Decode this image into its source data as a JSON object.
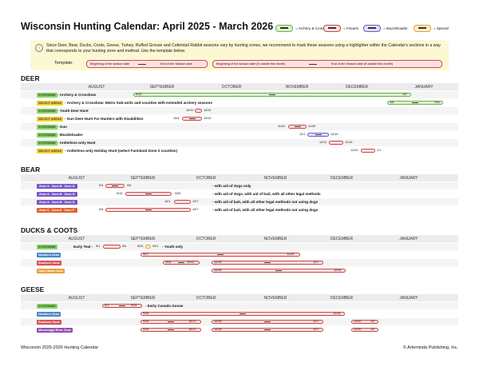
{
  "title": "Wisconsin Hunting Calendar: April 2025 - March 2026",
  "legend": {
    "archery": "= Archery & Crossbow",
    "firearm": "= Firearm",
    "muzzle": "= Muzzleloader",
    "special": "= Special"
  },
  "note": "Since Deer, Bear, Ducks, Coots, Geese, Turkey, Ruffed Grouse and Cottontail Rabbit seasons vary by hunting zones, we recommend to mark these seasons using a highlighter within the Calendar's sections in a way that corresponds to your hunting zone and method. Use the template below.",
  "template": {
    "label": "Template:",
    "begin": "Beginning of the season date",
    "end": "End of the Season  date",
    "begin_outside": "Beginning of the season date (if outside this month)",
    "end_outside": "End of the Season date (if outside this month)"
  },
  "months": {
    "deer": [
      "AUGUST",
      "SEPTEMBER",
      "OCTOBER",
      "NOVEMBER",
      "DECEMBER",
      "JANUARY"
    ],
    "bear": [
      "AUGUST",
      "SEPTEMBER",
      "OCTOBER",
      "NOVEMBER",
      "DECEMBER",
      "JANUARY"
    ],
    "ducks": [
      "AUGUST",
      "SEPTEMBER",
      "OCTOBER",
      "NOVEMBER",
      "DECEMBER",
      "JANUARY"
    ],
    "geese": [
      "AUGUST",
      "SEPTEMBER",
      "OCTOBER",
      "NOVEMBER",
      "DECEMBER",
      "JANUARY"
    ]
  },
  "deer": {
    "heading": "DEER",
    "rows": [
      {
        "tag": "STATEWIDE",
        "label": "- Archery & Crossbow",
        "d1": "9/13",
        "d2": "1/4"
      },
      {
        "tag": "SELECT AREAS",
        "label": "- Archery & Crossbow: Metro Sub-units and counties with extended archery seasons",
        "d1": "1/5",
        "d2": "1/31"
      },
      {
        "tag": "STATEWIDE",
        "label": "- Youth Deer Hunt",
        "d1": "10/11",
        "d2": "10/12"
      },
      {
        "tag": "SELECT AREAS",
        "label": "- Gun Deer Hunt For Hunters with Disabilities",
        "d1": "10/4",
        "d2": "10/12"
      },
      {
        "tag": "STATEWIDE",
        "label": "- Gun",
        "d1": "11/22",
        "d2": "11/30"
      },
      {
        "tag": "STATEWIDE",
        "label": "- Muzzleloader",
        "d1": "12/1",
        "d2": "12/10"
      },
      {
        "tag": "STATEWIDE",
        "label": "- Antlerless-only Hunt",
        "d1": "12/11",
        "d2": "12/14"
      },
      {
        "tag": "SELECT AREAS",
        "label": "- Antlerless-only Holiday Hunt (select Farmland Zone 2 counties)",
        "d1": "12/24",
        "d2": "1/1"
      }
    ]
  },
  "bear": {
    "heading": "BEAR",
    "rows": [
      {
        "zones": [
          "Zone A",
          "Zone B",
          "Zone D"
        ],
        "label": "- with aid of dogs only",
        "d1": "9/3",
        "d2": "9/9"
      },
      {
        "zones": [
          "Zone A",
          "Zone B",
          "Zone D"
        ],
        "label": "- with aid of dogs, with aid of bait, with all other legal methods",
        "d1": "9/10",
        "d2": "9/30"
      },
      {
        "zones": [
          "Zone A",
          "Zone B",
          "Zone D"
        ],
        "label": "- with aid of bait, with all other legal methods not using dogs",
        "d1": "10/1",
        "d2": "10/7"
      },
      {
        "zones": [
          "Zone C",
          "Zone E",
          "Zone F"
        ],
        "label": "- with aid of bait, with all other legal methods not using dogs",
        "d1": "9/3",
        "d2": "10/7"
      }
    ]
  },
  "ducks": {
    "heading": "DUCKS & COOTS",
    "rows": [
      {
        "tag": "STATEWIDE",
        "label": "Early Teal -",
        "d1": "9/1",
        "d2": "9/9",
        "d3": "9/20",
        "d4": "9/21",
        "label2": "- Youth only"
      },
      {
        "tag": "Northern Zone",
        "d1": "9/27",
        "d2": "11/25"
      },
      {
        "tag": "Southern Zone",
        "d1": "10/4",
        "d2": "10/12",
        "d3": "10/18",
        "d4": "12/7"
      },
      {
        "tag": "Open Water Zone",
        "d1": "10/18",
        "d2": "12/16"
      }
    ]
  },
  "geese": {
    "heading": "GEESE",
    "rows": [
      {
        "tag": "STATEWIDE",
        "label": "- Early Canada Goose",
        "d1": "9/1",
        "d2": "9/15"
      },
      {
        "tag": "Northern Zone",
        "d1": "9/16",
        "d2": "12/16"
      },
      {
        "tag": "Southern Zone",
        "d1": "9/16",
        "d2": "10/12",
        "d3": "10/18",
        "d4": "12/7",
        "d5": "12/20",
        "d6": "1/2"
      },
      {
        "tag": "Mississippi River Zone",
        "d1": "9/16",
        "d2": "10/12",
        "d3": "10/18",
        "d4": "12/7",
        "d5": "12/20",
        "d6": "1/2"
      }
    ]
  },
  "footer": {
    "left": "Wisconsin 2025-2026 Hunting Calendar",
    "right": "© Arteminda Publishing, Inc."
  },
  "colors": {
    "archery": "#6cae4e",
    "firearm": "#c84848",
    "muzzle": "#6c5cc8",
    "special": "#e8a030"
  }
}
